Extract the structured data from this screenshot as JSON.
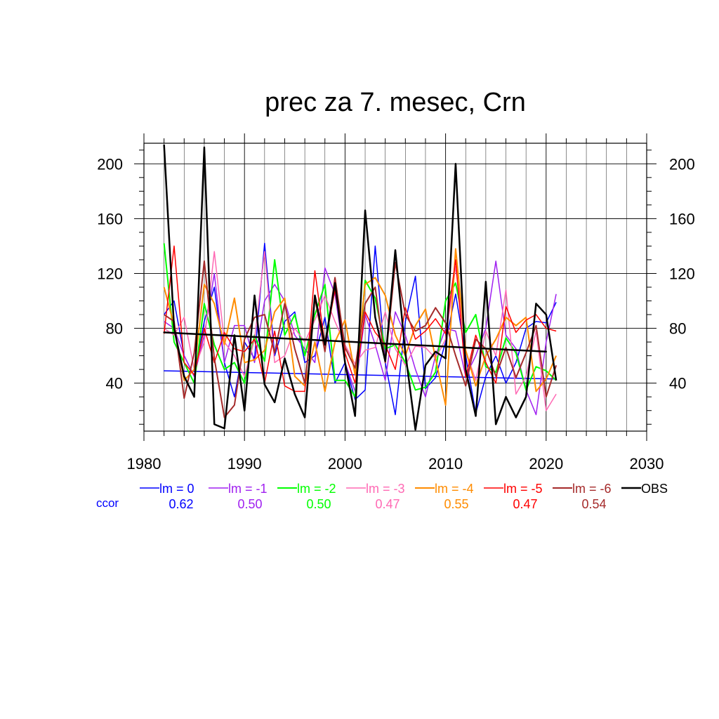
{
  "chart_data": {
    "type": "line",
    "title": "prec za 7. mesec, Crn",
    "xlabel": "",
    "ylabel": "",
    "xlim": [
      1980,
      2030
    ],
    "ylim": [
      5,
      215
    ],
    "x_ticks": [
      1980,
      1990,
      2000,
      2010,
      2020,
      2030
    ],
    "y_ticks": [
      40,
      80,
      120,
      160,
      200
    ],
    "grid": true,
    "legend_position": "bottom",
    "ccor_label": "ccor",
    "x": [
      1982,
      1983,
      1984,
      1985,
      1986,
      1987,
      1988,
      1989,
      1990,
      1991,
      1992,
      1993,
      1994,
      1995,
      1996,
      1997,
      1998,
      1999,
      2000,
      2001,
      2002,
      2003,
      2004,
      2005,
      2006,
      2007,
      2008,
      2009,
      2010,
      2011,
      2012,
      2013,
      2014,
      2015,
      2016,
      2017,
      2018,
      2019,
      2020,
      2021
    ],
    "series": [
      {
        "name": "lm = 0",
        "color": "#0000ff",
        "ccor": "0.62",
        "width": 1.5,
        "values": [
          90,
          100,
          60,
          45,
          85,
          110,
          55,
          30,
          70,
          58,
          142,
          60,
          85,
          92,
          55,
          60,
          88,
          40,
          55,
          28,
          35,
          140,
          55,
          17,
          85,
          118,
          36,
          44,
          70,
          105,
          60,
          18,
          45,
          60,
          40,
          55,
          80,
          85,
          84,
          99
        ],
        "trend": [
          49,
          43
        ]
      },
      {
        "name": "lm = -1",
        "color": "#a020f0",
        "ccor": "0.50",
        "width": 1.5,
        "values": [
          85,
          80,
          60,
          45,
          75,
          120,
          55,
          82,
          82,
          55,
          100,
          112,
          100,
          75,
          65,
          55,
          124,
          105,
          55,
          34,
          90,
          68,
          42,
          92,
          75,
          50,
          30,
          60,
          80,
          78,
          45,
          60,
          80,
          129,
          75,
          65,
          35,
          17,
          70,
          105
        ],
        "trend": null
      },
      {
        "name": "lm = -2",
        "color": "#00ff00",
        "ccor": "0.50",
        "width": 2,
        "values": [
          142,
          70,
          55,
          40,
          98,
          68,
          50,
          55,
          40,
          75,
          56,
          130,
          75,
          90,
          60,
          90,
          112,
          42,
          42,
          30,
          115,
          102,
          65,
          68,
          55,
          35,
          37,
          48,
          100,
          113,
          77,
          90,
          52,
          48,
          73,
          62,
          35,
          52,
          49,
          42
        ],
        "trend": null
      },
      {
        "name": "lm = -3",
        "color": "#ff69b4",
        "ccor": "0.47",
        "width": 1.5,
        "values": [
          80,
          75,
          88,
          50,
          70,
          136,
          70,
          60,
          45,
          72,
          136,
          55,
          60,
          80,
          70,
          86,
          104,
          85,
          68,
          54,
          64,
          66,
          92,
          65,
          53,
          67,
          66,
          58,
          72,
          125,
          64,
          42,
          78,
          60,
          108,
          32,
          45,
          78,
          20,
          32
        ],
        "trend": null
      },
      {
        "name": "lm = -4",
        "color": "#ff8c00",
        "ccor": "0.55",
        "width": 2,
        "values": [
          110,
          82,
          42,
          50,
          112,
          98,
          68,
          102,
          55,
          57,
          64,
          92,
          102,
          45,
          38,
          70,
          34,
          70,
          86,
          46,
          112,
          117,
          104,
          75,
          60,
          82,
          94,
          58,
          24,
          138,
          64,
          38,
          60,
          72,
          88,
          82,
          88,
          34,
          43,
          60
        ],
        "trend": null
      },
      {
        "name": "lm = -5",
        "color": "#ff0000",
        "ccor": "0.47",
        "width": 1.5,
        "values": [
          76,
          140,
          55,
          46,
          80,
          55,
          77,
          65,
          63,
          72,
          40,
          78,
          38,
          34,
          34,
          122,
          68,
          108,
          62,
          40,
          92,
          77,
          68,
          50,
          95,
          72,
          78,
          87,
          76,
          130,
          44,
          75,
          55,
          40,
          96,
          77,
          86,
          90,
          80,
          78
        ],
        "trend": null
      },
      {
        "name": "lm = -6",
        "color": "#a52a2a",
        "ccor": "0.54",
        "width": 2,
        "values": [
          90,
          85,
          29,
          62,
          129,
          58,
          15,
          24,
          72,
          88,
          90,
          62,
          98,
          65,
          40,
          102,
          63,
          117,
          66,
          51,
          98,
          110,
          55,
          128,
          90,
          78,
          82,
          95,
          84,
          60,
          38,
          72,
          65,
          45,
          66,
          44,
          62,
          82,
          30,
          53
        ],
        "trend": null
      },
      {
        "name": "OBS",
        "color": "#000000",
        "ccor": "",
        "width": 2.5,
        "values": [
          214,
          80,
          45,
          30,
          212,
          10,
          7,
          75,
          20,
          104,
          39,
          26,
          58,
          32,
          15,
          104,
          68,
          113,
          55,
          16,
          166,
          88,
          56,
          137,
          62,
          6,
          53,
          63,
          58,
          200,
          50,
          16,
          114,
          10,
          30,
          15,
          30,
          98,
          90,
          42
        ],
        "trend": [
          77,
          63
        ],
        "trend_x": [
          1982,
          2020
        ]
      }
    ]
  }
}
